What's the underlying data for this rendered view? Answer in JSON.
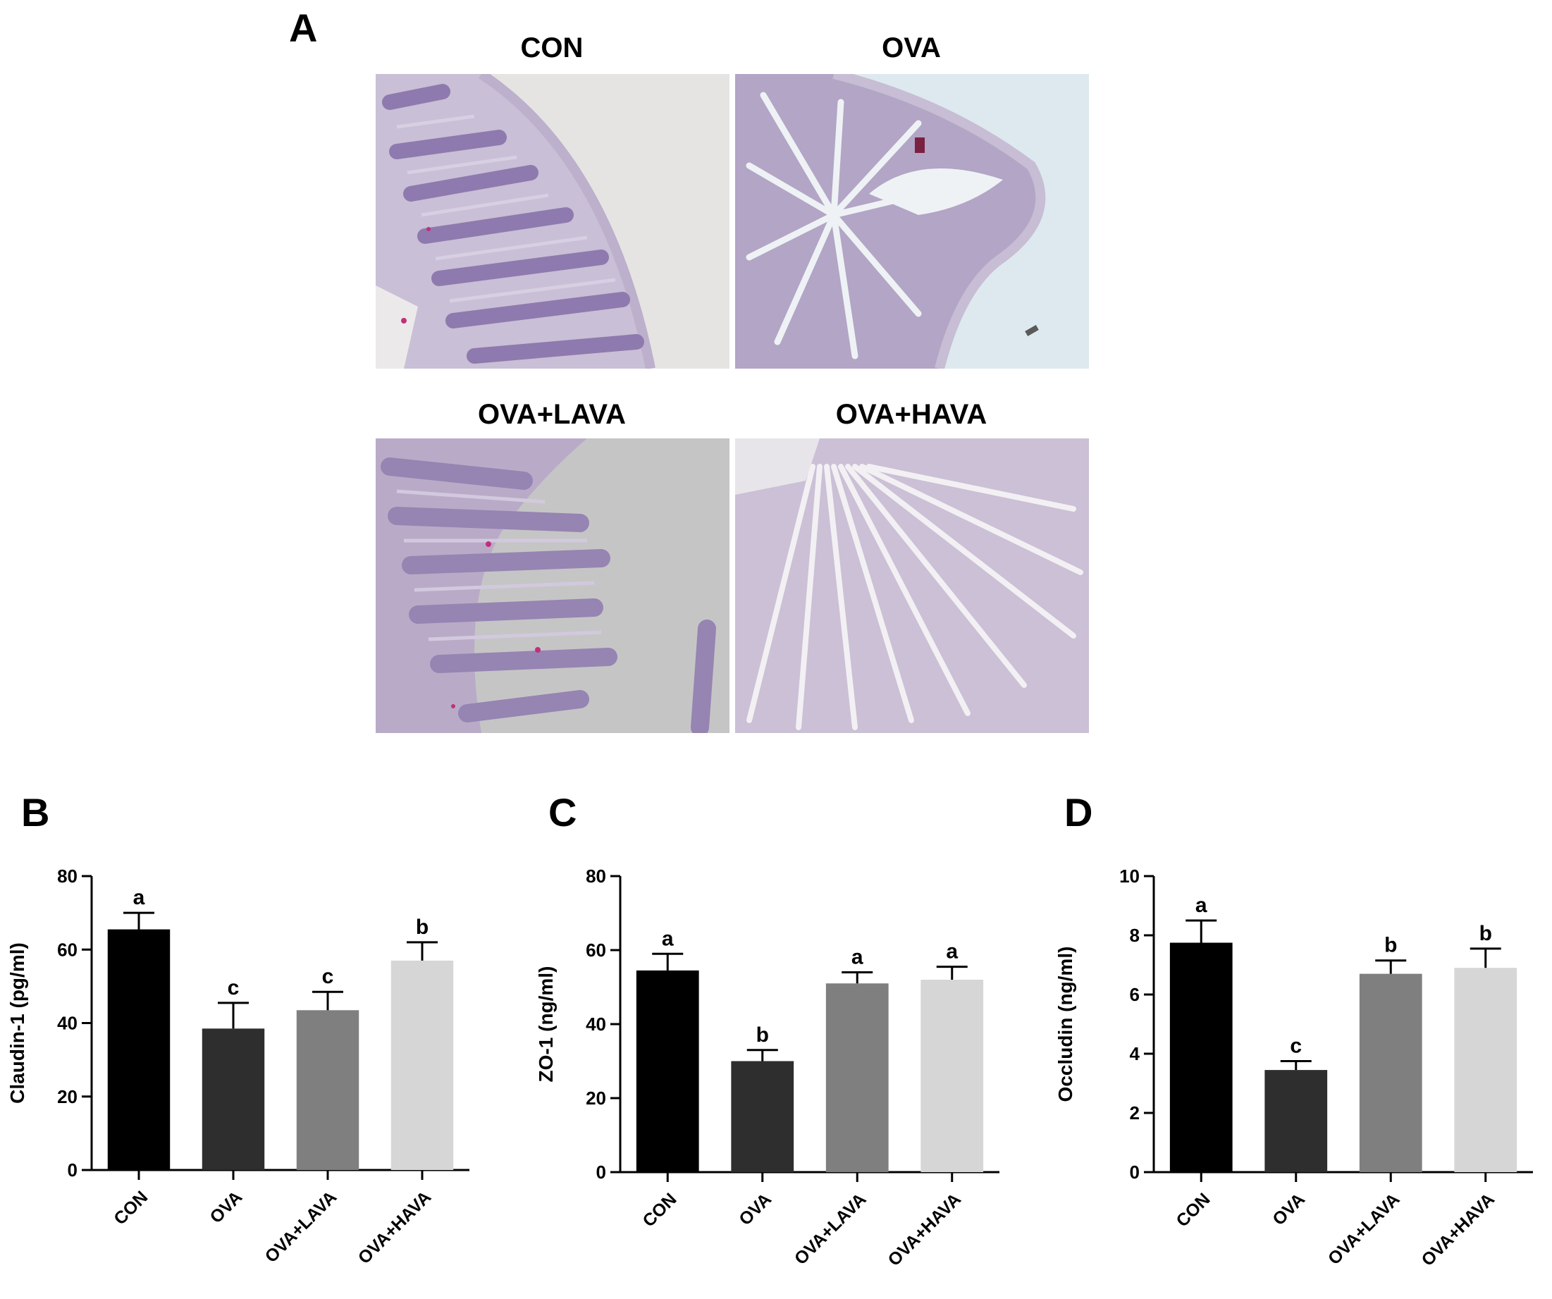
{
  "panel_a": {
    "letter": "A",
    "images": [
      {
        "title": "CON"
      },
      {
        "title": "OVA"
      },
      {
        "title": "OVA+LAVA"
      },
      {
        "title": "OVA+HAVA"
      }
    ]
  },
  "colors": {
    "bar_fills": [
      "#000000",
      "#2e2e2e",
      "#7f7f7f",
      "#d6d6d6"
    ],
    "axis": "#000000",
    "tissue": "#9a86b4",
    "tissue_dark": "#6f5c93"
  },
  "chart_data": [
    {
      "panel": "B",
      "type": "bar",
      "categories": [
        "CON",
        "OVA",
        "OVA+LAVA",
        "OVA+HAVA"
      ],
      "values": [
        65.5,
        38.5,
        43.5,
        57
      ],
      "errors": [
        4.5,
        7,
        5,
        5
      ],
      "significance": [
        "a",
        "c",
        "c",
        "b"
      ],
      "ylabel": "Claudin-1 (pg/ml)",
      "ylim": [
        0,
        80
      ],
      "yticks": [
        0,
        20,
        40,
        60,
        80
      ]
    },
    {
      "panel": "C",
      "type": "bar",
      "categories": [
        "CON",
        "OVA",
        "OVA+LAVA",
        "OVA+HAVA"
      ],
      "values": [
        54.5,
        30,
        51,
        52
      ],
      "errors": [
        4.5,
        3,
        3,
        3.5
      ],
      "significance": [
        "a",
        "b",
        "a",
        "a"
      ],
      "ylabel": "ZO-1 (ng/ml)",
      "ylim": [
        0,
        80
      ],
      "yticks": [
        0,
        20,
        40,
        60,
        80
      ]
    },
    {
      "panel": "D",
      "type": "bar",
      "categories": [
        "CON",
        "OVA",
        "OVA+LAVA",
        "OVA+HAVA"
      ],
      "values": [
        7.75,
        3.45,
        6.7,
        6.9
      ],
      "errors": [
        0.75,
        0.3,
        0.45,
        0.65
      ],
      "significance": [
        "a",
        "c",
        "b",
        "b"
      ],
      "ylabel": "Occludin (ng/ml)",
      "ylim": [
        0,
        10
      ],
      "yticks": [
        0,
        2,
        4,
        6,
        8,
        10
      ]
    }
  ]
}
